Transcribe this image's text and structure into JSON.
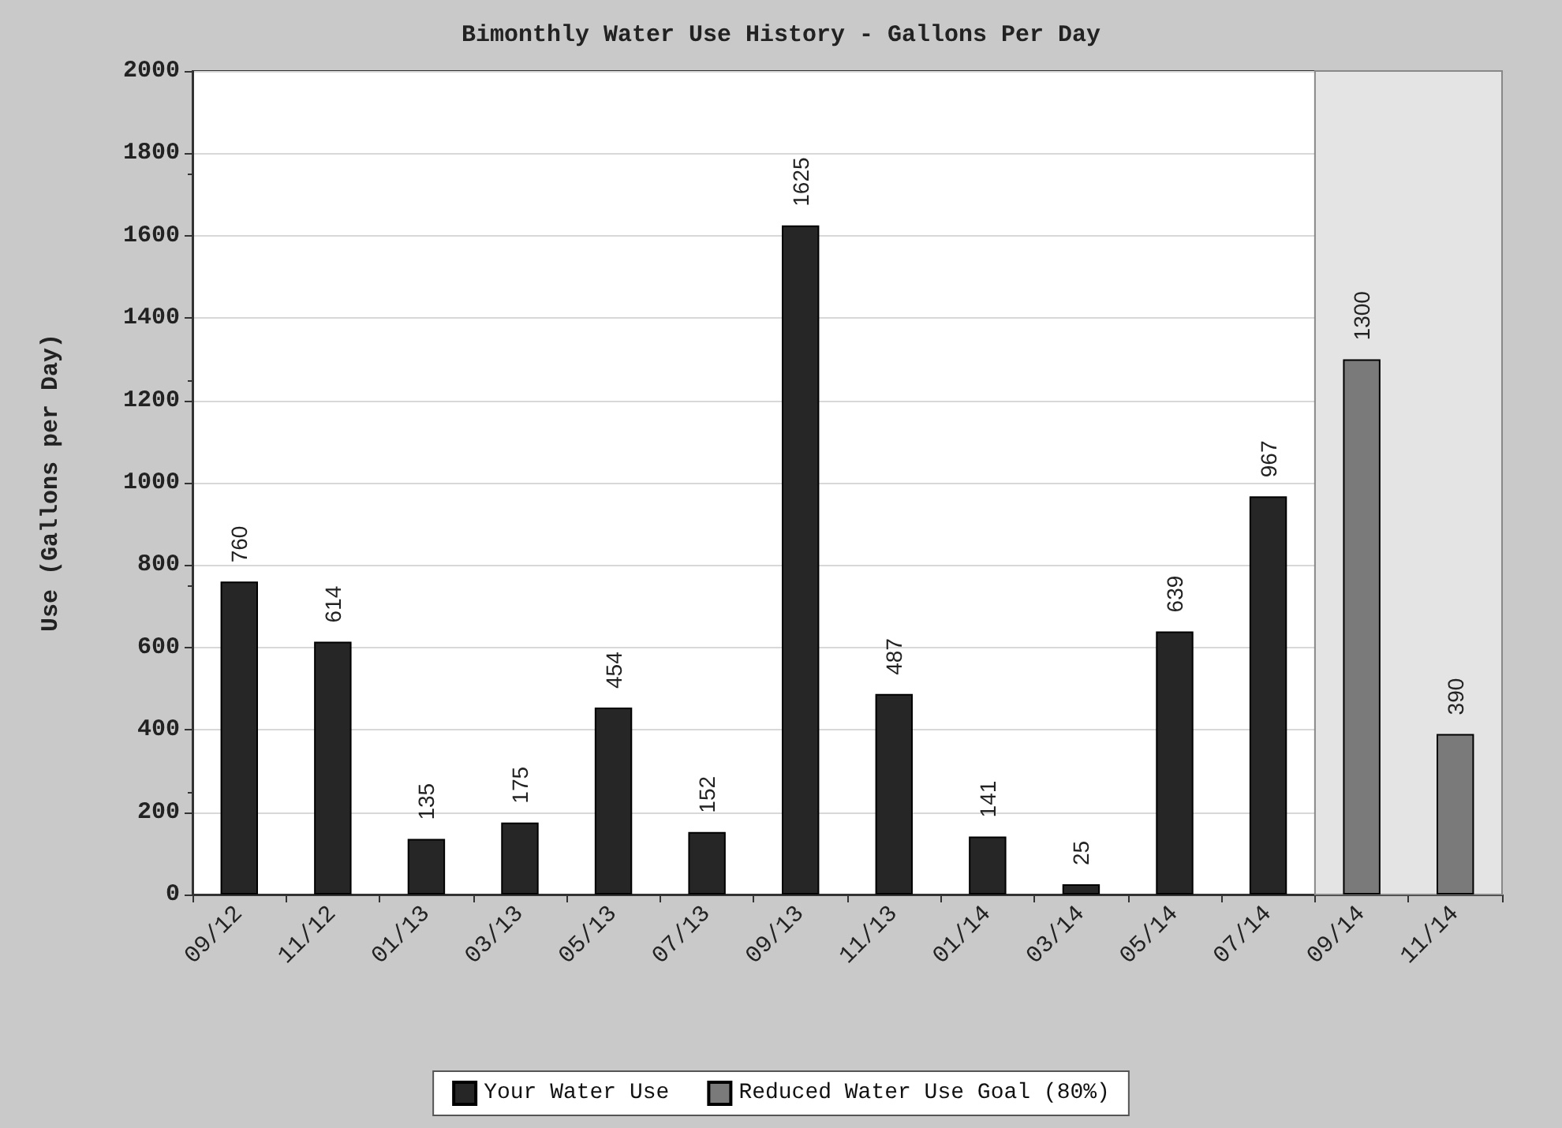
{
  "chart_data": {
    "type": "bar",
    "title": "Bimonthly Water Use History - Gallons Per Day",
    "ylabel": "Use (Gallons per Day)",
    "categories": [
      "09/12",
      "11/12",
      "01/13",
      "03/13",
      "05/13",
      "07/13",
      "09/13",
      "11/13",
      "01/14",
      "03/14",
      "05/14",
      "07/14",
      "09/14",
      "11/14"
    ],
    "series": [
      {
        "name": "Your Water Use",
        "color": "#262626",
        "values": [
          760,
          614,
          135,
          175,
          454,
          152,
          1625,
          487,
          141,
          25,
          639,
          967,
          null,
          null
        ]
      },
      {
        "name": "Reduced Water Use Goal (80%)",
        "color": "#7a7a7a",
        "values": [
          null,
          null,
          null,
          null,
          null,
          null,
          null,
          null,
          null,
          null,
          null,
          null,
          1300,
          390
        ]
      }
    ],
    "ylim": [
      0,
      2000
    ],
    "yticks": [
      0,
      200,
      400,
      600,
      800,
      1000,
      1200,
      1400,
      1600,
      1800,
      2000
    ],
    "bands": [
      {
        "axis": "x",
        "from": "09/14",
        "to": "11/14",
        "color": "#e4e4e4"
      }
    ],
    "grid": "y",
    "legend": "bottom",
    "data_labels": true
  }
}
